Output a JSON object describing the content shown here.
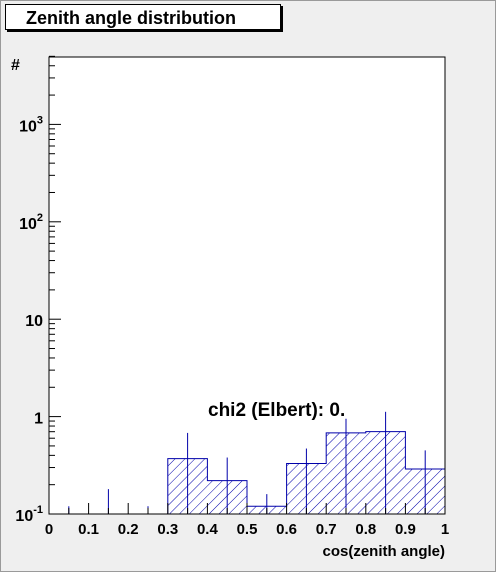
{
  "chart_data": {
    "type": "bar",
    "title": "Zenith angle distribution",
    "xlabel": "cos(zenith angle)",
    "ylabel": "#",
    "log_y": true,
    "xlim": [
      0,
      1
    ],
    "ylim": [
      0.1,
      5000
    ],
    "x_ticks": [
      "0",
      "0.1",
      "0.2",
      "0.3",
      "0.4",
      "0.5",
      "0.6",
      "0.7",
      "0.8",
      "0.9",
      "1"
    ],
    "y_ticks": [
      {
        "value": 0.1,
        "base": "10",
        "exp": "-1"
      },
      {
        "value": 1,
        "base": "1",
        "exp": ""
      },
      {
        "value": 10,
        "base": "10",
        "exp": ""
      },
      {
        "value": 100,
        "base": "10",
        "exp": "2"
      },
      {
        "value": 1000,
        "base": "10",
        "exp": "3"
      }
    ],
    "bins": [
      {
        "x_low": 0.0,
        "x_high": 0.1,
        "value": 0.1,
        "err_up": 0.12
      },
      {
        "x_low": 0.1,
        "x_high": 0.2,
        "value": 0.1,
        "err_up": 0.18
      },
      {
        "x_low": 0.2,
        "x_high": 0.3,
        "value": 0.1,
        "err_up": 0.12
      },
      {
        "x_low": 0.3,
        "x_high": 0.4,
        "value": 0.37,
        "err_up": 0.68
      },
      {
        "x_low": 0.4,
        "x_high": 0.5,
        "value": 0.22,
        "err_up": 0.38
      },
      {
        "x_low": 0.5,
        "x_high": 0.6,
        "value": 0.12,
        "err_up": 0.16
      },
      {
        "x_low": 0.6,
        "x_high": 0.7,
        "value": 0.33,
        "err_up": 0.47
      },
      {
        "x_low": 0.7,
        "x_high": 0.8,
        "value": 0.68,
        "err_up": 0.95
      },
      {
        "x_low": 0.8,
        "x_high": 0.9,
        "value": 0.7,
        "err_up": 1.12
      },
      {
        "x_low": 0.9,
        "x_high": 1.0,
        "value": 0.29,
        "err_up": 0.45
      }
    ],
    "annotation": "chi2 (Elbert): 0.",
    "grid": false,
    "legend": "none",
    "colors": {
      "line": "#0000aa",
      "frame_background": "#efefef",
      "plot_background": "#ffffff"
    }
  }
}
